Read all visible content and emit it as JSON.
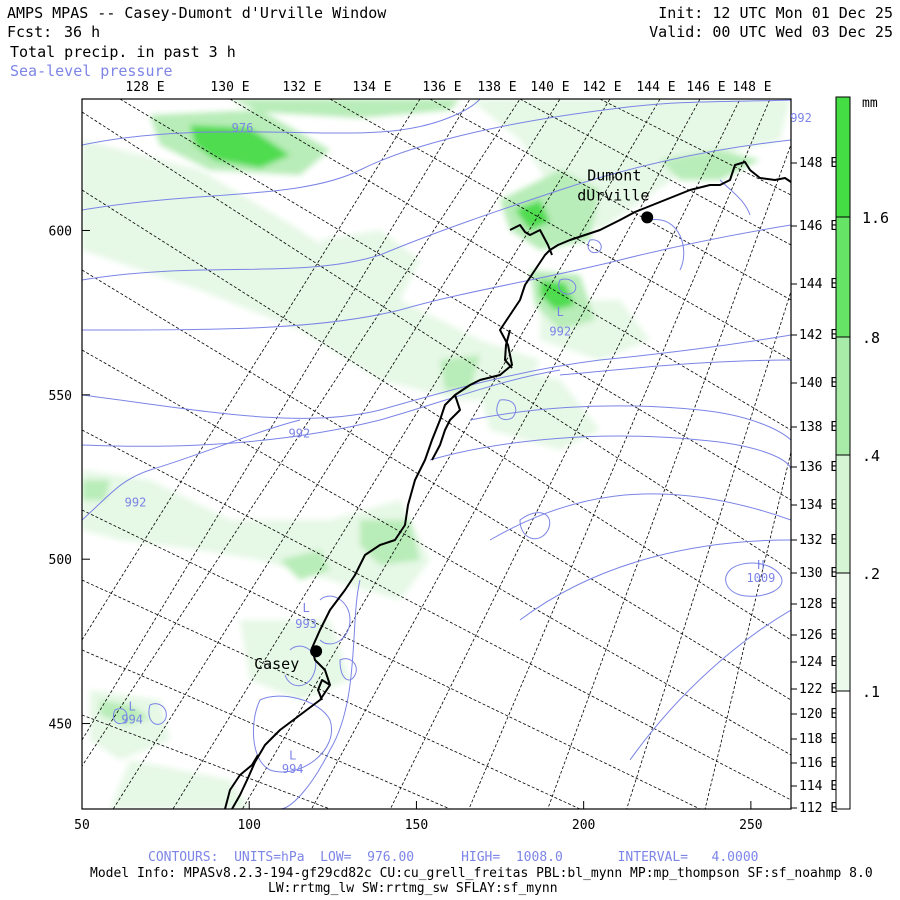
{
  "header": {
    "title": "AMPS MPAS -- Casey-Dumont d'Urville Window",
    "forecast_label": "Fcst:",
    "forecast_hours": "36 h",
    "field": "Total precip. in past 3 h",
    "overlay": "Sea-level pressure",
    "init": "Init: 12 UTC Mon 01 Dec 25",
    "valid": "Valid: 00 UTC Wed 03 Dec 25"
  },
  "colors": {
    "contour": "#7b84e6",
    "coast": "#000000",
    "grid": "#000000",
    "precip_light": "#e9f9e9",
    "precip_mid": "#c3efc3",
    "precip_heavy": "#44dd44"
  },
  "map": {
    "top_lon_labels": [
      "128 E",
      "130 E",
      "132 E",
      "134 E",
      "136 E",
      "138 E",
      "140 E",
      "142 E",
      "144 E",
      "146 E",
      "148 E"
    ],
    "right_lat_labels": [
      "148 E",
      "146 E",
      "144 E",
      "142 E",
      "140 E",
      "138 E",
      "136 E",
      "134 E",
      "132 E",
      "130 E",
      "128 E",
      "126 E",
      "124 E",
      "122 E",
      "120 E",
      "118 E",
      "116 E",
      "114 E",
      "112 E"
    ],
    "y_ticks": [
      {
        "value": 450,
        "label": "450"
      },
      {
        "value": 500,
        "label": "500"
      },
      {
        "value": 550,
        "label": "550"
      },
      {
        "value": 600,
        "label": "600"
      }
    ],
    "x_ticks": [
      {
        "value": 50,
        "label": "50"
      },
      {
        "value": 100,
        "label": "100"
      },
      {
        "value": 150,
        "label": "150"
      },
      {
        "value": 200,
        "label": "200"
      },
      {
        "value": 250,
        "label": "250"
      }
    ],
    "x_range": [
      50,
      262
    ],
    "y_range": [
      424,
      640
    ],
    "stations": [
      {
        "name": "Casey",
        "x": 120,
        "y": 472
      },
      {
        "name_line1": "Dumont",
        "name_line2": "dUrville",
        "x": 219,
        "y": 604
      }
    ],
    "contour_labels": [
      {
        "text": "976",
        "x": 98,
        "y": 630
      },
      {
        "text": "992",
        "x": 265,
        "y": 633
      },
      {
        "text": "992",
        "x": 193,
        "y": 568
      },
      {
        "text": "L",
        "x": 193,
        "y": 574
      },
      {
        "text": "992",
        "x": 66,
        "y": 516
      },
      {
        "text": "992",
        "x": 115,
        "y": 537
      },
      {
        "text": "L",
        "x": 117,
        "y": 484
      },
      {
        "text": "993",
        "x": 117,
        "y": 479
      },
      {
        "text": "L",
        "x": 65,
        "y": 454
      },
      {
        "text": "994",
        "x": 65,
        "y": 450
      },
      {
        "text": "L",
        "x": 113,
        "y": 439
      },
      {
        "text": "994",
        "x": 113,
        "y": 435
      },
      {
        "text": "H",
        "x": 253,
        "y": 497
      },
      {
        "text": "1009",
        "x": 253,
        "y": 493
      }
    ]
  },
  "legend": {
    "unit": "mm",
    "levels": [
      {
        "label": ".1",
        "value": 0.1
      },
      {
        "label": ".2",
        "value": 0.2
      },
      {
        "label": ".4",
        "value": 0.4
      },
      {
        "label": ".8",
        "value": 0.8
      },
      {
        "label": "1.6",
        "value": 1.6
      }
    ]
  },
  "footer": {
    "contours": "CONTOURS:  UNITS=hPa  LOW=  976.00      HIGH=  1008.0       INTERVAL=   4.0000",
    "model_info": "Model Info: MPASv8.2.3-194-gf29cd82c CU:cu_grell_freitas PBL:bl_mynn MP:mp_thompson SF:sf_noahmp 8.0",
    "physics": "LW:rrtmg_lw SW:rrtmg_sw SFLAY:sf_mynn"
  }
}
